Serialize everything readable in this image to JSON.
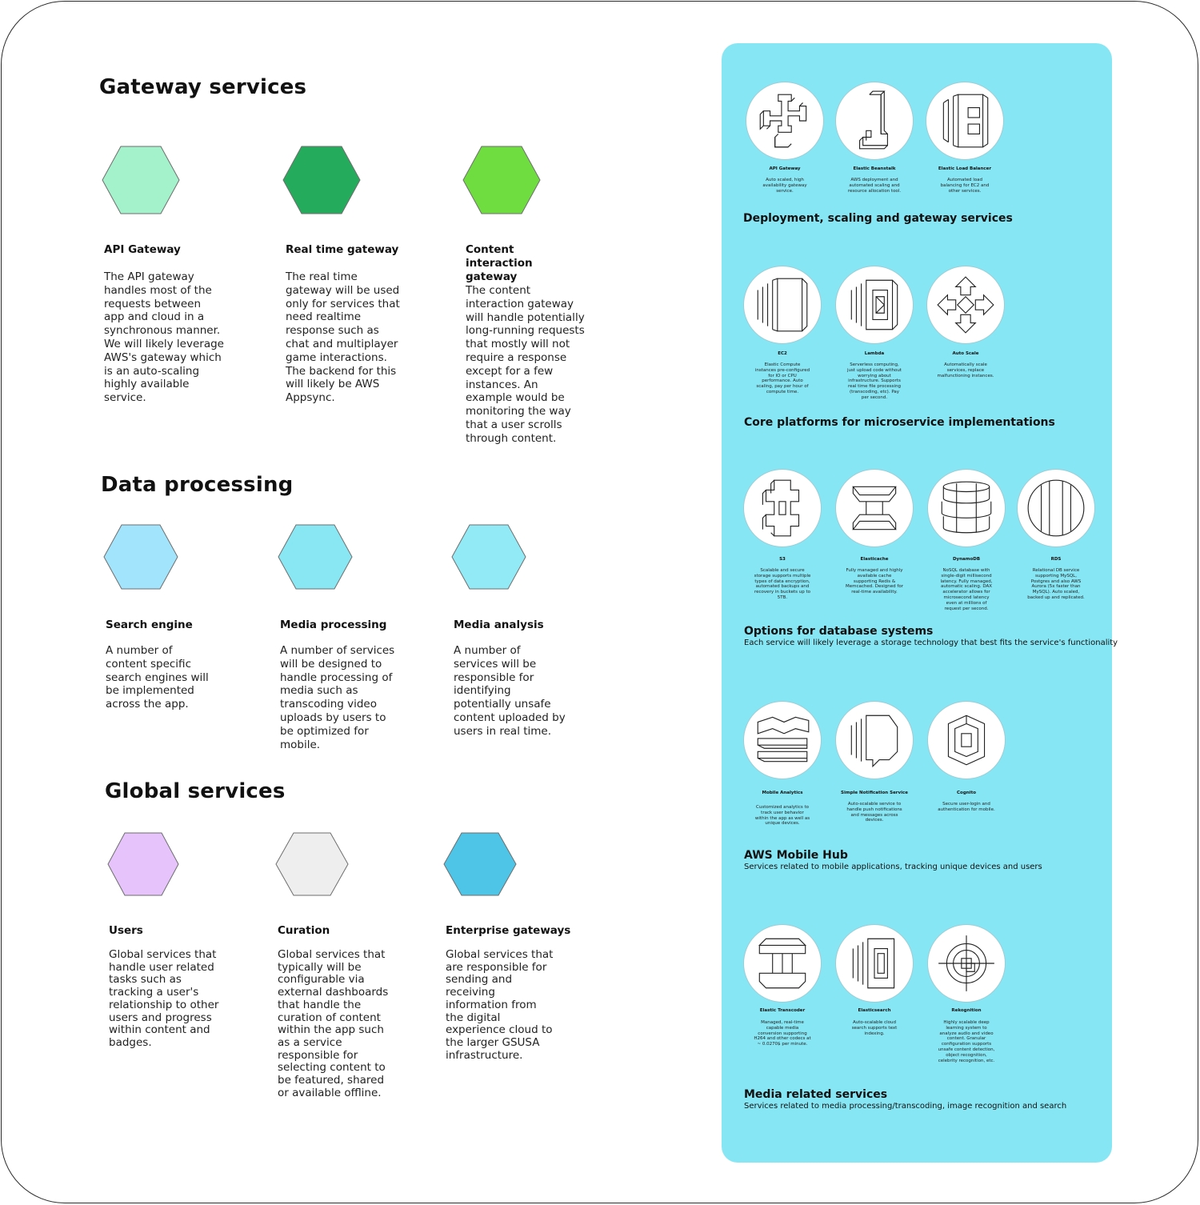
{
  "left": {
    "gateway": {
      "title": "Gateway services",
      "cards": [
        {
          "title": "API Gateway",
          "color": "#a3f2cb",
          "desc": "The API gateway handles most of the requests between app and cloud in a synchronous manner. We will likely leverage AWS's gateway which is an auto-scaling highly available service."
        },
        {
          "title": "Real time gateway",
          "color": "#24ab5c",
          "desc": "The real time gateway will be used only for services that need realtime response such as chat and multiplayer game interactions. The backend for this will likely be AWS Appsync."
        },
        {
          "title": "Content interaction gateway",
          "color": "#6fdd3f",
          "desc": "The content interaction gateway will handle potentially long-running requests that mostly will not require a response except for a few instances. An example would be monitoring the way that a user scrolls through content."
        }
      ]
    },
    "data": {
      "title": "Data processing",
      "cards": [
        {
          "title": "Search engine",
          "color": "#a2e4fc",
          "desc": "A number of content specific search engines will be implemented across the app."
        },
        {
          "title": "Media processing",
          "color": "#89e7f3",
          "desc": "A number of services will be designed to handle processing of media such as transcoding video uploads by users to be optimized for mobile."
        },
        {
          "title": "Media analysis",
          "color": "#92eaf6",
          "desc": "A number of services will be responsible for identifying potentially unsafe content uploaded by users in real time."
        }
      ]
    },
    "global": {
      "title": "Global services",
      "cards": [
        {
          "title": "Users",
          "color": "#e6c3fb",
          "desc": "Global services that handle user related tasks such as tracking a user's relationship to other users and progress within content and badges."
        },
        {
          "title": "Curation",
          "color": "#eeeeee",
          "desc": "Global services that typically will be configurable via external dashboards that handle the curation of content within the app such as a service responsible for selecting content to be featured, shared or available offline."
        },
        {
          "title": "Enterprise gateways",
          "color": "#4ec5e6",
          "desc": "Global services that are responsible for sending and receiving information from the digital experience cloud to the larger GSUSA infrastructure."
        }
      ]
    }
  },
  "panel": {
    "bg": "#87e6f4",
    "groups": [
      {
        "title": "Deployment, scaling and gateway services",
        "subtitle": "",
        "services": [
          {
            "name": "API Gateway",
            "icon": "api-gateway-icon",
            "desc": "Auto scaled, high availability gateway service."
          },
          {
            "name": "Elastic Beanstalk",
            "icon": "elastic-beanstalk-icon",
            "desc": "AWS deployment and automated scaling and resource allocation tool."
          },
          {
            "name": "Elastic Load Balancer",
            "icon": "elastic-load-balancer-icon",
            "desc": "Automated load balancing for EC2 and other services."
          }
        ]
      },
      {
        "title": "Core platforms for microservice implementations",
        "subtitle": "",
        "services": [
          {
            "name": "EC2",
            "icon": "ec2-icon",
            "desc": "Elastic Compute instances pre-configured for IO or CPU performance. Auto scaling, pay per hour of compute time."
          },
          {
            "name": "Lambda",
            "icon": "lambda-icon",
            "desc": "Serverless computing, just upload code without worrying about infrastructure. Supports real time file processing (transcoding, etc). Pay per second."
          },
          {
            "name": "Auto Scale",
            "icon": "auto-scale-icon",
            "desc": "Automatically scale services, replace malfunctioning instances."
          }
        ]
      },
      {
        "title": "Options for database systems",
        "subtitle": "Each service will likely leverage a storage technology that best fits the service's functionality",
        "services": [
          {
            "name": "S3",
            "icon": "s3-icon",
            "desc": "Scalable and secure storage supports multiple types of data encryption, automated backups and recovery in buckets up to 5TB."
          },
          {
            "name": "Elasticache",
            "icon": "elasticache-icon",
            "desc": "Fully managed and highly available cache supporting Redis & Memcached. Designed for real-time availability."
          },
          {
            "name": "DynamoDB",
            "icon": "dynamodb-icon",
            "desc": "NoSQL database with single-digit millisecond latency. Fully managed, automatic scaling. DAX accelerator allows for microsecond latency even at millions of request per second."
          },
          {
            "name": "RDS",
            "icon": "rds-icon",
            "desc": "Relational DB service supporting MySQL, Postgres and also AWS Aurora (5x faster than MySQL). Auto scaled, backed up and replicated."
          }
        ]
      },
      {
        "title": "AWS Mobile Hub",
        "subtitle": "Services related to mobile applications, tracking unique devices and users",
        "services": [
          {
            "name": "Mobile Analytics",
            "icon": "mobile-analytics-icon",
            "desc": "Customized analytics to track user behavior within the app as well as unique devices."
          },
          {
            "name": "Simple Notification Service",
            "icon": "sns-icon",
            "desc": "Auto-scalable service to handle push notifications and messages across devices."
          },
          {
            "name": "Cognito",
            "icon": "cognito-icon",
            "desc": "Secure user-login and authentication for mobile."
          }
        ]
      },
      {
        "title": "Media related services",
        "subtitle": "Services related to media processing/transcoding, image recognition and search",
        "services": [
          {
            "name": "Elastic Transcoder",
            "icon": "elastic-transcoder-icon",
            "desc": "Managed, real-time capable media conversion supporting H264 and other codecs at ~ 0.0270$ per minute."
          },
          {
            "name": "Elasticsearch",
            "icon": "elasticsearch-icon",
            "desc": "Auto-scalable cloud search supports text indexing."
          },
          {
            "name": "Rekognition",
            "icon": "rekognition-icon",
            "desc": "Highly scalable deep learning system to analyze audio and video content. Granular configuration supports unsafe content detection, object recognition, celebrity recognition, etc."
          }
        ]
      }
    ]
  }
}
